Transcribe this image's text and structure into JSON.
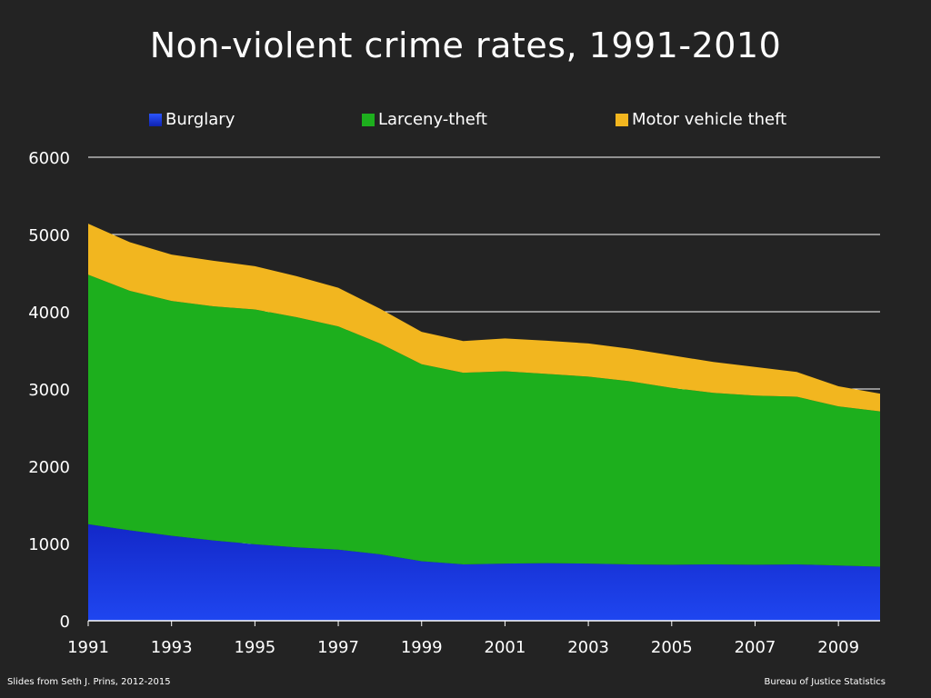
{
  "slide": {
    "title": "Non-violent crime rates, 1991-2010",
    "credit_left": "Slides from Seth J. Prins, 2012-2015",
    "credit_right": "Bureau of Justice Statistics"
  },
  "colors": {
    "background": "#232323",
    "burglary": "#1534d4",
    "larceny": "#1daf1d",
    "motor": "#f2b61f",
    "gridline": "#ffffff"
  },
  "chart_data": {
    "type": "area",
    "stacked": true,
    "title": "Non-violent crime rates, 1991-2010",
    "xlabel": "",
    "ylabel": "",
    "x": [
      1991,
      1992,
      1993,
      1994,
      1995,
      1996,
      1997,
      1998,
      1999,
      2000,
      2001,
      2002,
      2003,
      2004,
      2005,
      2006,
      2007,
      2008,
      2009,
      2010
    ],
    "x_tick_labels": [
      "1991",
      "1993",
      "1995",
      "1997",
      "1999",
      "2001",
      "2003",
      "2005",
      "2007",
      "2009"
    ],
    "y_tick_labels": [
      "0",
      "1000",
      "2000",
      "3000",
      "4000",
      "5000",
      "6000"
    ],
    "ylim": [
      0,
      6000
    ],
    "grid": "horizontal",
    "legend_position": "top",
    "series": [
      {
        "name": "Burglary",
        "color": "#1534d4",
        "values": [
          1250,
          1170,
          1100,
          1040,
          990,
          950,
          920,
          860,
          770,
          730,
          740,
          745,
          740,
          730,
          725,
          730,
          725,
          730,
          715,
          700
        ]
      },
      {
        "name": "Larceny-theft",
        "color": "#1daf1d",
        "values": [
          3230,
          3100,
          3040,
          3030,
          3040,
          2980,
          2890,
          2730,
          2550,
          2480,
          2490,
          2450,
          2420,
          2370,
          2290,
          2220,
          2190,
          2170,
          2060,
          2010
        ]
      },
      {
        "name": "Motor vehicle theft",
        "color": "#f2b61f",
        "values": [
          660,
          630,
          600,
          590,
          560,
          530,
          500,
          450,
          420,
          410,
          425,
          430,
          430,
          420,
          420,
          400,
          370,
          320,
          260,
          230
        ]
      }
    ]
  }
}
